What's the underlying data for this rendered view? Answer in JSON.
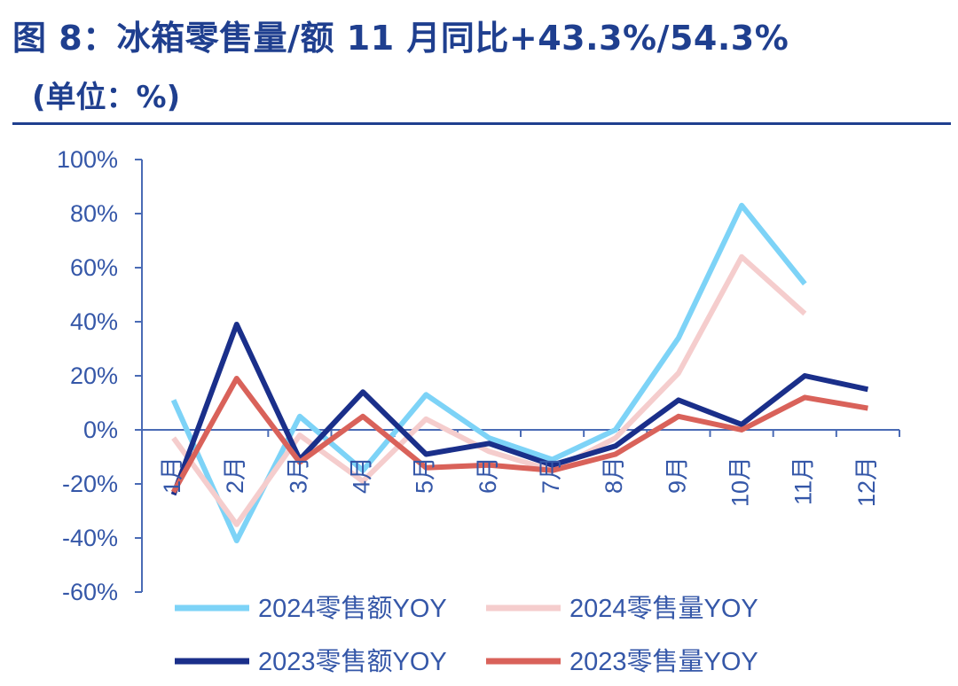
{
  "header": {
    "title": "图 8：冰箱零售量/额 11 月同比+43.3%/54.3%",
    "subtitle": "(单位：%)"
  },
  "chart_data": {
    "type": "line",
    "categories": [
      "1月",
      "2月",
      "3月",
      "4月",
      "5月",
      "6月",
      "7月",
      "8月",
      "9月",
      "10月",
      "11月",
      "12月"
    ],
    "y_ticks": [
      "100%",
      "80%",
      "60%",
      "40%",
      "20%",
      "0%",
      "-20%",
      "-40%",
      "-60%"
    ],
    "ylim": [
      -60,
      100
    ],
    "y_step": 20,
    "grid": false,
    "legend_position": "bottom",
    "series": [
      {
        "name": "2024零售额YOY",
        "color": "#7DD3F7",
        "values": [
          11,
          -41,
          5,
          -15,
          13,
          -3,
          -11,
          0,
          34,
          83,
          54,
          null
        ]
      },
      {
        "name": "2024零售量YOY",
        "color": "#F5CDCD",
        "values": [
          -3,
          -35,
          -2,
          -19,
          4,
          -8,
          -15,
          -3,
          21,
          64,
          43,
          null
        ]
      },
      {
        "name": "2023零售额YOY",
        "color": "#1A2F8A",
        "values": [
          -24,
          39,
          -11,
          14,
          -9,
          -5,
          -13,
          -6,
          11,
          2,
          20,
          15
        ]
      },
      {
        "name": "2023零售量YOY",
        "color": "#D9625A",
        "values": [
          -23,
          19,
          -12,
          5,
          -14,
          -13,
          -15,
          -9,
          5,
          0,
          12,
          8
        ]
      }
    ]
  }
}
